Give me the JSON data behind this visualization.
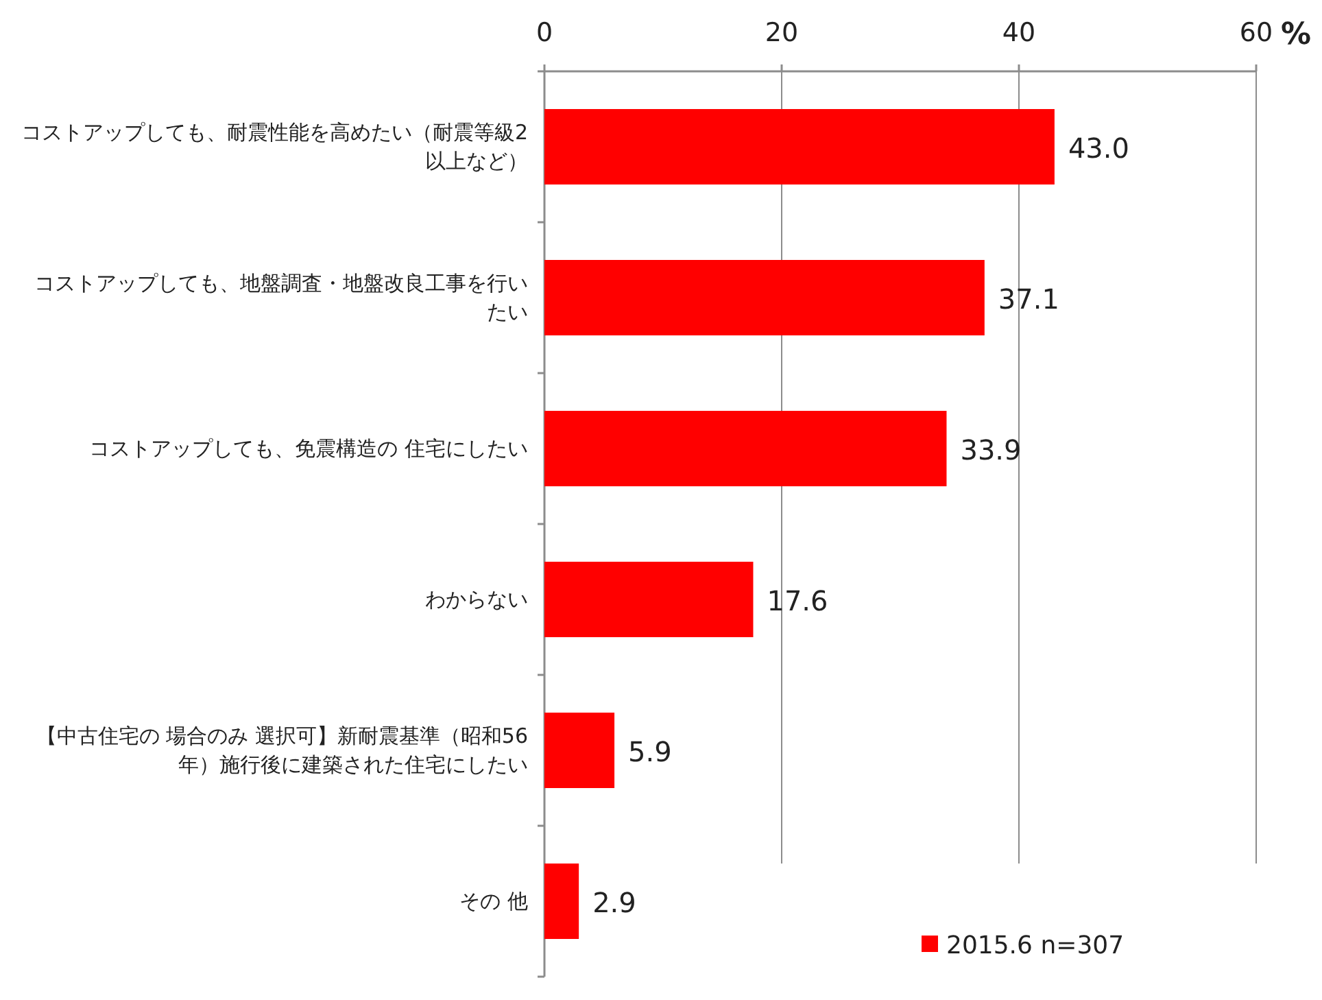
{
  "chart_data": {
    "type": "bar",
    "orientation": "horizontal",
    "xlabel": "%",
    "categories": [
      "コストアップしても、耐震性能を高めたい（耐震等級2以上など）",
      "コストアップしても、地盤調査・地盤改良工事を行いたい",
      "コストアップしても、免震構造の 住宅にしたい",
      "わからない",
      "【中古住宅の 場合のみ 選択可】新耐震基準（昭和56年）施行後に建築された住宅にしたい",
      "その 他"
    ],
    "series": [
      {
        "name": "2015.6 n=307",
        "color": "#ff0000",
        "values": [
          43.0,
          37.1,
          33.9,
          17.6,
          5.9,
          2.9
        ],
        "value_labels": [
          "43.0",
          "37.1",
          "33.9",
          "17.6",
          "5.9",
          "2.9"
        ]
      }
    ],
    "xlim": [
      0,
      60
    ],
    "xticks": [
      0,
      20,
      40,
      60
    ],
    "grid": "x",
    "legend": "bottom right"
  }
}
